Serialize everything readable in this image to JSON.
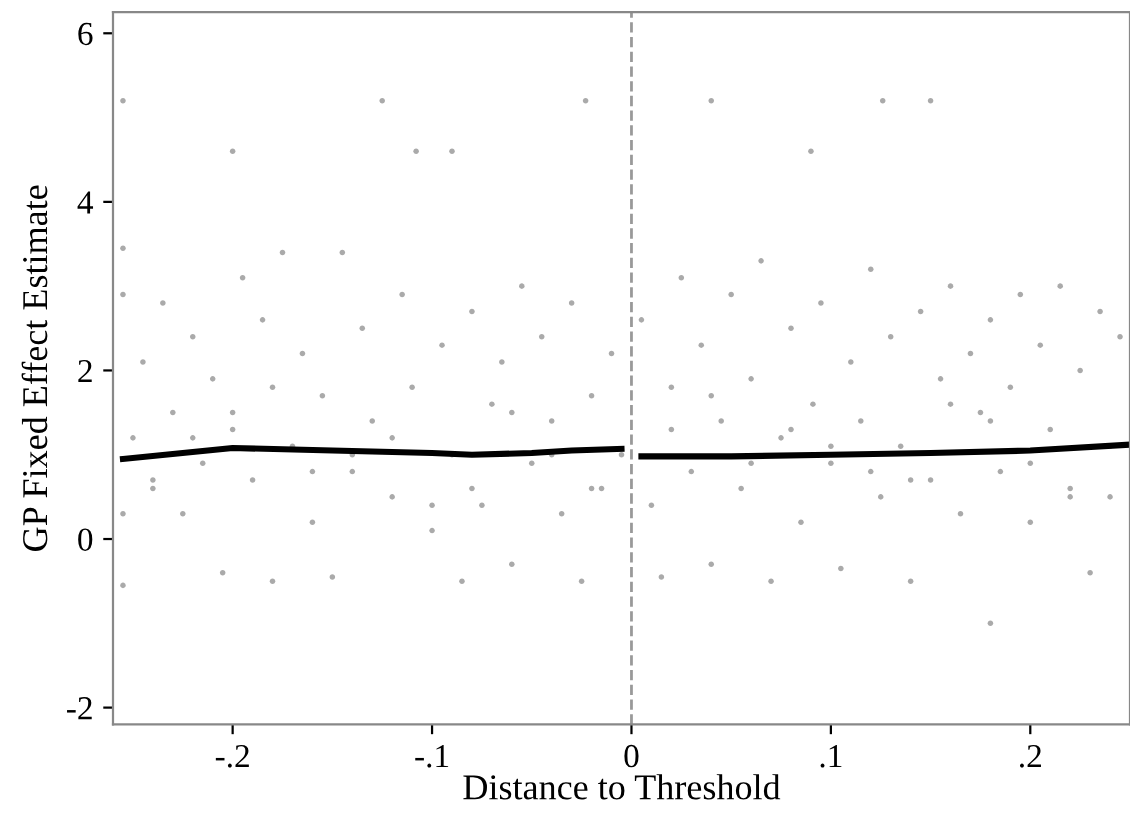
{
  "chart_data": {
    "type": "scatter",
    "xlabel": "Distance to Threshold",
    "ylabel": "GP Fixed Effect Estimate",
    "xlim": [
      -0.26,
      0.25
    ],
    "ylim": [
      -2.2,
      6.25
    ],
    "xticks": [
      {
        "value": -0.2,
        "label": "-.2"
      },
      {
        "value": -0.1,
        "label": "-.1"
      },
      0,
      {
        "value": 0.1,
        "label": ".1"
      },
      {
        "value": 0.2,
        "label": ".2"
      }
    ],
    "yticks": [
      -2,
      0,
      2,
      4,
      6
    ],
    "grid": false,
    "ref_lines": [
      {
        "axis": "x",
        "value": 0,
        "label": null,
        "color": "#999999",
        "line_style": "dashed"
      }
    ],
    "series": [
      {
        "marker": "circle",
        "color": "#aaaaaa",
        "x": [
          -0.255,
          -0.255,
          -0.255,
          -0.255,
          -0.255,
          -0.25,
          -0.245,
          -0.24,
          -0.235,
          -0.23,
          -0.225,
          -0.22,
          -0.215,
          -0.21,
          -0.205,
          -0.2,
          -0.2,
          -0.195,
          -0.19,
          -0.185,
          -0.18,
          -0.175,
          -0.17,
          -0.165,
          -0.16,
          -0.155,
          -0.15,
          -0.145,
          -0.14,
          -0.135,
          -0.13,
          -0.125,
          -0.12,
          -0.115,
          -0.11,
          -0.108,
          -0.1,
          -0.095,
          -0.09,
          -0.09,
          -0.085,
          -0.08,
          -0.075,
          -0.07,
          -0.065,
          -0.06,
          -0.055,
          -0.05,
          -0.045,
          -0.04,
          -0.035,
          -0.03,
          -0.025,
          -0.023,
          -0.02,
          -0.015,
          -0.01,
          -0.005,
          0.005,
          0.01,
          0.015,
          0.02,
          0.025,
          0.03,
          0.035,
          0.04,
          0.04,
          0.045,
          0.05,
          0.055,
          0.06,
          0.065,
          0.07,
          0.075,
          0.08,
          0.085,
          0.09,
          0.091,
          0.095,
          0.1,
          0.105,
          0.11,
          0.115,
          0.12,
          0.125,
          0.126,
          0.13,
          0.135,
          0.14,
          0.145,
          0.15,
          0.15,
          0.155,
          0.16,
          0.165,
          0.17,
          0.175,
          0.18,
          0.18,
          0.185,
          0.19,
          0.195,
          0.2,
          0.205,
          0.21,
          0.215,
          0.22,
          0.225,
          0.23,
          0.235,
          0.24,
          0.245,
          -0.24,
          -0.2,
          -0.16,
          -0.12,
          -0.08,
          -0.04,
          0.02,
          0.06,
          0.1,
          0.14,
          0.18,
          0.22,
          -0.22,
          -0.18,
          -0.14,
          -0.1,
          -0.06,
          -0.02,
          0.04,
          0.08,
          0.12,
          0.16,
          0.2,
          0.24
        ],
        "values": [
          5.2,
          3.45,
          2.9,
          -0.55,
          0.3,
          1.2,
          2.1,
          0.6,
          2.8,
          1.5,
          0.3,
          2.4,
          0.9,
          1.9,
          -0.4,
          4.6,
          1.3,
          3.1,
          0.7,
          2.6,
          -0.5,
          3.4,
          1.1,
          2.2,
          0.2,
          1.7,
          -0.45,
          3.4,
          0.8,
          2.5,
          1.4,
          5.2,
          0.5,
          2.9,
          1.8,
          4.6,
          0.1,
          2.3,
          4.6,
          1.0,
          -0.5,
          2.7,
          0.4,
          1.6,
          2.1,
          -0.3,
          3.0,
          0.9,
          2.4,
          1.4,
          0.3,
          2.8,
          -0.5,
          5.2,
          1.7,
          0.6,
          2.2,
          1.0,
          2.6,
          0.4,
          -0.45,
          1.8,
          3.1,
          0.8,
          2.3,
          5.2,
          -0.3,
          1.4,
          2.9,
          0.6,
          1.9,
          3.3,
          -0.5,
          1.2,
          2.5,
          0.2,
          4.6,
          1.6,
          2.8,
          0.9,
          -0.35,
          2.1,
          1.4,
          3.2,
          0.5,
          5.2,
          2.4,
          1.1,
          -0.5,
          2.7,
          5.2,
          0.7,
          1.9,
          3.0,
          0.3,
          2.2,
          1.5,
          -1.0,
          2.6,
          0.8,
          1.8,
          2.9,
          0.2,
          2.3,
          1.3,
          3.0,
          0.6,
          2.0,
          -0.4,
          2.7,
          1.1,
          2.4,
          0.7,
          1.5,
          0.8,
          1.2,
          0.6,
          1.0,
          1.3,
          0.9,
          1.1,
          0.7,
          1.4,
          0.5,
          1.2,
          1.8,
          1.0,
          0.4,
          1.5,
          0.6,
          1.7,
          1.3,
          0.8,
          1.6,
          0.9,
          0.5
        ]
      },
      {
        "type": "line",
        "color": "#000000",
        "marker": "none",
        "x": [
          -0.255,
          -0.2,
          -0.15,
          -0.1,
          -0.08,
          -0.05,
          -0.03,
          -0.005
        ],
        "values": [
          0.95,
          1.08,
          1.05,
          1.02,
          1.0,
          1.02,
          1.05,
          1.07
        ]
      },
      {
        "type": "line",
        "color": "#000000",
        "marker": "none",
        "x": [
          0.005,
          0.05,
          0.1,
          0.15,
          0.2,
          0.25
        ],
        "values": [
          0.98,
          0.98,
          1.0,
          1.02,
          1.05,
          1.12
        ]
      }
    ]
  }
}
